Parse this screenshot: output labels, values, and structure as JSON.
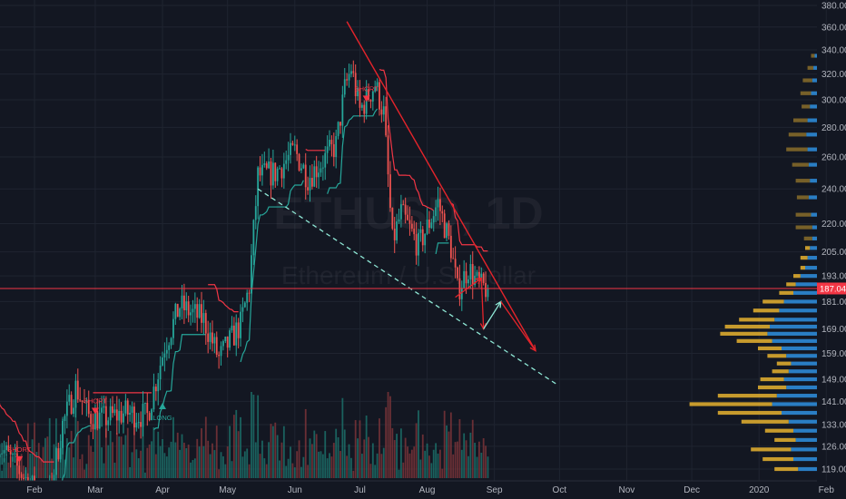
{
  "chart_data": {
    "type": "candlestick",
    "symbol_watermark": "ETHUSD, 1D",
    "name_watermark": "Ethereum / U.S. Dollar",
    "x_ticks": [
      "Feb",
      "Mar",
      "Apr",
      "May",
      "Jun",
      "Jul",
      "Aug",
      "Sep",
      "Oct",
      "Nov",
      "Dec",
      "2020",
      "Feb"
    ],
    "y_ticks": [
      380,
      360,
      340,
      320,
      300,
      280,
      260,
      240,
      220,
      205,
      193,
      181,
      169,
      159,
      149,
      141,
      133,
      126,
      119
    ],
    "y_range": [
      116,
      382
    ],
    "y_scale": "log",
    "last_price": {
      "value": 187.04,
      "label": "187.04",
      "color": "#f23645"
    },
    "signals": [
      {
        "label": "SHORT",
        "date": "2019-01-25",
        "price": 124,
        "type": "short"
      },
      {
        "label": "SHORT",
        "date": "2019-03-01",
        "price": 140,
        "type": "short"
      },
      {
        "label": "LONG",
        "date": "2019-04-01",
        "price": 137,
        "type": "long"
      },
      {
        "label": "SHORT",
        "date": "2019-07-04",
        "price": 306,
        "type": "short"
      }
    ],
    "colors": {
      "up": "#26a69a",
      "down": "#ef5350",
      "stop_up": "#26a69a",
      "stop_down": "#f23645",
      "trend": "#e5242b",
      "support": "#8fe8d6",
      "vp_up": "#2d89d6",
      "vp_down": "#dcaa2f",
      "vol_up": "#1c6f68",
      "vol_down": "#7a3438"
    },
    "ohlc_anchors": [
      {
        "date": "2019-01-15",
        "close": 127
      },
      {
        "date": "2019-02-01",
        "close": 113
      },
      {
        "date": "2019-02-07",
        "close": 109
      },
      {
        "date": "2019-02-14",
        "close": 133
      },
      {
        "date": "2019-02-20",
        "close": 146
      },
      {
        "date": "2019-02-26",
        "close": 136
      },
      {
        "date": "2019-03-05",
        "close": 135
      },
      {
        "date": "2019-03-15",
        "close": 137
      },
      {
        "date": "2019-03-25",
        "close": 136
      },
      {
        "date": "2019-04-02",
        "close": 162
      },
      {
        "date": "2019-04-09",
        "close": 179
      },
      {
        "date": "2019-04-20",
        "close": 173
      },
      {
        "date": "2019-04-27",
        "close": 157
      },
      {
        "date": "2019-05-07",
        "close": 171
      },
      {
        "date": "2019-05-11",
        "close": 188
      },
      {
        "date": "2019-05-15",
        "close": 248
      },
      {
        "date": "2019-05-23",
        "close": 250
      },
      {
        "date": "2019-06-01",
        "close": 264
      },
      {
        "date": "2019-06-07",
        "close": 247
      },
      {
        "date": "2019-06-13",
        "close": 256
      },
      {
        "date": "2019-06-20",
        "close": 268
      },
      {
        "date": "2019-06-24",
        "close": 308
      },
      {
        "date": "2019-06-27",
        "close": 325
      },
      {
        "date": "2019-07-01",
        "close": 292
      },
      {
        "date": "2019-07-08",
        "close": 312
      },
      {
        "date": "2019-07-12",
        "close": 290
      },
      {
        "date": "2019-07-16",
        "close": 210
      },
      {
        "date": "2019-07-20",
        "close": 226
      },
      {
        "date": "2019-07-28",
        "close": 208
      },
      {
        "date": "2019-08-01",
        "close": 218
      },
      {
        "date": "2019-08-06",
        "close": 232
      },
      {
        "date": "2019-08-12",
        "close": 207
      },
      {
        "date": "2019-08-15",
        "close": 186
      },
      {
        "date": "2019-08-20",
        "close": 197
      },
      {
        "date": "2019-08-25",
        "close": 188
      },
      {
        "date": "2019-08-29",
        "close": 187
      }
    ],
    "volume_profile": [
      {
        "price": 335,
        "up": 2,
        "down": 3
      },
      {
        "price": 325,
        "up": 3,
        "down": 5
      },
      {
        "price": 315,
        "up": 4,
        "down": 8
      },
      {
        "price": 305,
        "up": 5,
        "down": 9
      },
      {
        "price": 295,
        "up": 6,
        "down": 7
      },
      {
        "price": 285,
        "up": 8,
        "down": 12
      },
      {
        "price": 275,
        "up": 9,
        "down": 15
      },
      {
        "price": 265,
        "up": 8,
        "down": 18
      },
      {
        "price": 255,
        "up": 7,
        "down": 14
      },
      {
        "price": 245,
        "up": 6,
        "down": 12
      },
      {
        "price": 235,
        "up": 7,
        "down": 10
      },
      {
        "price": 225,
        "up": 5,
        "down": 13
      },
      {
        "price": 218,
        "up": 4,
        "down": 14
      },
      {
        "price": 212,
        "up": 4,
        "down": 7
      },
      {
        "price": 207,
        "up": 6,
        "down": 4
      },
      {
        "price": 202,
        "up": 8,
        "down": 6
      },
      {
        "price": 197,
        "up": 10,
        "down": 4
      },
      {
        "price": 193,
        "up": 14,
        "down": 6
      },
      {
        "price": 189,
        "up": 18,
        "down": 8
      },
      {
        "price": 185,
        "up": 20,
        "down": 12
      },
      {
        "price": 181,
        "up": 28,
        "down": 18
      },
      {
        "price": 177,
        "up": 32,
        "down": 22
      },
      {
        "price": 173,
        "up": 36,
        "down": 30
      },
      {
        "price": 170,
        "up": 40,
        "down": 38
      },
      {
        "price": 167,
        "up": 42,
        "down": 40
      },
      {
        "price": 164,
        "up": 38,
        "down": 30
      },
      {
        "price": 161,
        "up": 30,
        "down": 20
      },
      {
        "price": 158,
        "up": 26,
        "down": 16
      },
      {
        "price": 155,
        "up": 22,
        "down": 12
      },
      {
        "price": 152,
        "up": 24,
        "down": 14
      },
      {
        "price": 149,
        "up": 28,
        "down": 20
      },
      {
        "price": 146,
        "up": 26,
        "down": 24
      },
      {
        "price": 143,
        "up": 34,
        "down": 50
      },
      {
        "price": 140,
        "up": 38,
        "down": 70
      },
      {
        "price": 137,
        "up": 30,
        "down": 54
      },
      {
        "price": 134,
        "up": 24,
        "down": 40
      },
      {
        "price": 131,
        "up": 20,
        "down": 24
      },
      {
        "price": 128,
        "up": 18,
        "down": 18
      },
      {
        "price": 125,
        "up": 22,
        "down": 34
      },
      {
        "price": 122,
        "up": 20,
        "down": 26
      },
      {
        "price": 119,
        "up": 16,
        "down": 20
      }
    ]
  }
}
